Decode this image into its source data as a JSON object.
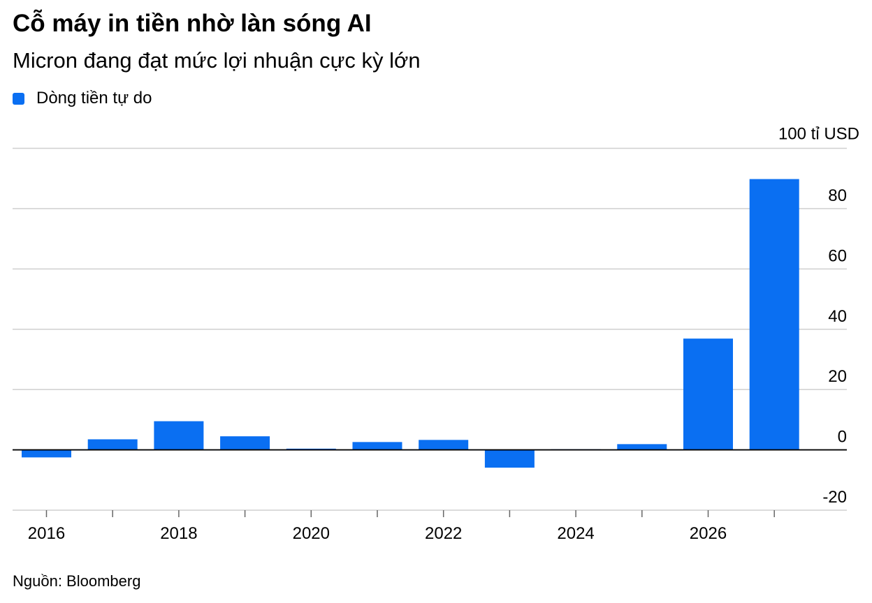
{
  "header": {
    "title": "Cỗ máy in tiền nhờ làn sóng AI",
    "subtitle": "Micron đang đạt mức lợi nhuận cực kỳ lớn"
  },
  "legend": {
    "label": "Dòng tiền tự do"
  },
  "footer": {
    "source": "Nguồn: Bloomberg"
  },
  "colors": {
    "bar": "#0a6ff2",
    "grid": "#cfcfcf",
    "zero_line": "#000000",
    "text": "#000000"
  },
  "chart_data": {
    "type": "bar",
    "title": "Cỗ máy in tiền nhờ làn sóng AI",
    "subtitle": "Micron đang đạt mức lợi nhuận cực kỳ lớn",
    "unit_label": "100 tỉ USD",
    "categories": [
      "2016",
      "2017",
      "2018",
      "2019",
      "2020",
      "2021",
      "2022",
      "2023",
      "2024",
      "2025",
      "2026",
      "2027"
    ],
    "x_tick_labels": [
      "2016",
      "2018",
      "2020",
      "2022",
      "2024",
      "2026"
    ],
    "series": [
      {
        "name": "Dòng tiền tự do",
        "values": [
          -2.5,
          3.5,
          9.5,
          4.5,
          0.4,
          2.6,
          3.3,
          -5.9,
          0.2,
          1.9,
          36.9,
          89.8
        ]
      }
    ],
    "y_ticks": [
      -20,
      0,
      20,
      40,
      60,
      80,
      100
    ],
    "y_tick_labels": [
      "-20",
      "0",
      "20",
      "40",
      "60",
      "80"
    ],
    "ylim": [
      -20,
      100
    ],
    "y_axis_position": "right",
    "grid": true,
    "legend_position": "top-left"
  }
}
